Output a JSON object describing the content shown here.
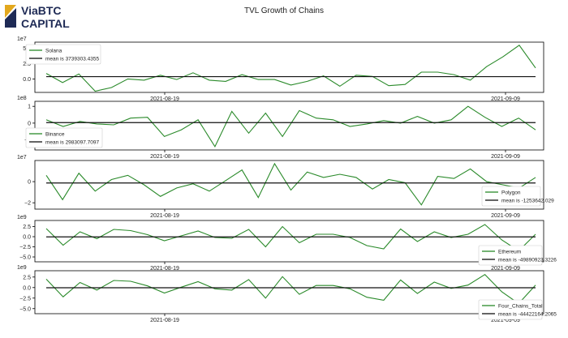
{
  "header": {
    "title": "TVL Growth of Chains",
    "logo_line1": "ViaBTC",
    "logo_line2": "CAPITAL"
  },
  "colors": {
    "series": "#2a8a2a",
    "mean": "#111111",
    "logo_navy": "#1e2a55",
    "logo_gold": "#e3a81d"
  },
  "chart_data": [
    {
      "type": "line",
      "scale_label": "1e7",
      "y_ticks": [
        "5.0",
        "2.5",
        "0.0"
      ],
      "y_tick_values": [
        5.0,
        2.5,
        0.0
      ],
      "ylim": [
        -2.2,
        6.0
      ],
      "x_ticks": [
        "2021-08-19",
        "2021-09-09"
      ],
      "legend_position": "upper-left",
      "series": [
        {
          "name": "Solana",
          "values": [
            0.9,
            -0.6,
            0.8,
            -2.0,
            -1.4,
            0.0,
            -0.2,
            0.6,
            -0.1,
            1.0,
            -0.2,
            -0.4,
            0.7,
            -0.1,
            -0.1,
            -1.0,
            -0.4,
            0.5,
            -1.2,
            0.6,
            0.4,
            -1.1,
            -0.9,
            1.1,
            1.1,
            0.7,
            -0.2,
            2.0,
            3.6,
            5.5,
            1.8
          ]
        },
        {
          "name": "mean is 3739303.4355",
          "values": [
            0.37
          ]
        }
      ]
    },
    {
      "type": "line",
      "scale_label": "1e8",
      "y_ticks": [
        "1",
        "0",
        "−1"
      ],
      "y_tick_values": [
        1,
        0,
        -1
      ],
      "ylim": [
        -1.6,
        1.3
      ],
      "x_ticks": [
        "2021-08-19",
        "2021-09-09"
      ],
      "legend_position": "lower-left",
      "series": [
        {
          "name": "Binance",
          "values": [
            0.2,
            -0.2,
            0.1,
            -0.05,
            -0.1,
            0.3,
            0.35,
            -0.8,
            -0.4,
            0.2,
            -1.4,
            0.7,
            -0.6,
            0.6,
            -0.8,
            0.75,
            0.3,
            0.2,
            -0.2,
            -0.05,
            0.15,
            0.0,
            0.4,
            0.0,
            0.2,
            1.0,
            0.35,
            -0.2,
            0.3,
            -0.4
          ]
        },
        {
          "name": "mean is 2983097.7097",
          "values": [
            0.03
          ]
        }
      ]
    },
    {
      "type": "line",
      "scale_label": "1e7",
      "y_ticks": [
        "0",
        "−2"
      ],
      "y_tick_values": [
        0,
        -2
      ],
      "ylim": [
        -2.6,
        2.0
      ],
      "x_ticks": [
        "2021-08-19",
        "2021-09-09"
      ],
      "legend_position": "lower-right",
      "series": [
        {
          "name": "Polygon",
          "values": [
            0.6,
            -1.7,
            0.8,
            -0.9,
            0.2,
            0.6,
            -0.3,
            -1.4,
            -0.6,
            -0.2,
            -0.9,
            0.1,
            1.1,
            -1.5,
            1.7,
            -0.8,
            0.9,
            0.4,
            0.7,
            0.4,
            -0.7,
            0.2,
            -0.1,
            -2.2,
            0.5,
            0.3,
            1.2,
            0.0,
            -0.3,
            -0.6,
            0.4
          ]
        },
        {
          "name": "mean is -1253642.029",
          "values": [
            -0.13
          ]
        }
      ]
    },
    {
      "type": "line",
      "scale_label": "1e9",
      "y_ticks": [
        "2.5",
        "0.0",
        "−2.5",
        "−5.0"
      ],
      "y_tick_values": [
        2.5,
        0.0,
        -2.5,
        -5.0
      ],
      "ylim": [
        -6.2,
        4.0
      ],
      "x_ticks": [
        "2021-08-19",
        "2021-09-09"
      ],
      "legend_position": "lower-right",
      "series": [
        {
          "name": "Ethereum",
          "values": [
            2.0,
            -2.1,
            1.2,
            -0.5,
            1.8,
            1.5,
            0.5,
            -1.0,
            0.2,
            1.4,
            -0.2,
            -0.4,
            1.8,
            -2.5,
            2.5,
            -1.5,
            0.6,
            0.6,
            -0.2,
            -2.2,
            -3.0,
            1.9,
            -1.2,
            1.2,
            -0.2,
            0.6,
            3.0,
            -0.8,
            -3.5,
            0.6
          ]
        },
        {
          "name": "mean is -49890923.3226",
          "values": [
            -0.05
          ]
        }
      ]
    },
    {
      "type": "line",
      "scale_label": "1e9",
      "y_ticks": [
        "2.5",
        "0.0",
        "−2.5",
        "−5.0"
      ],
      "y_tick_values": [
        2.5,
        0.0,
        -2.5,
        -5.0
      ],
      "ylim": [
        -6.2,
        4.0
      ],
      "x_ticks": [
        "2021-08-19",
        "2021-09-09"
      ],
      "legend_position": "lower-right",
      "series": [
        {
          "name": "Four_Chains_Total",
          "values": [
            2.0,
            -2.2,
            1.2,
            -0.6,
            1.7,
            1.5,
            0.4,
            -1.3,
            0.1,
            1.4,
            -0.3,
            -0.6,
            1.9,
            -2.5,
            2.6,
            -1.6,
            0.5,
            0.5,
            -0.3,
            -2.3,
            -3.0,
            1.8,
            -1.4,
            1.3,
            -0.2,
            0.6,
            3.1,
            -1.0,
            -3.8,
            0.6
          ]
        },
        {
          "name": "mean is -44422164.2065",
          "values": [
            -0.04
          ]
        }
      ]
    }
  ]
}
